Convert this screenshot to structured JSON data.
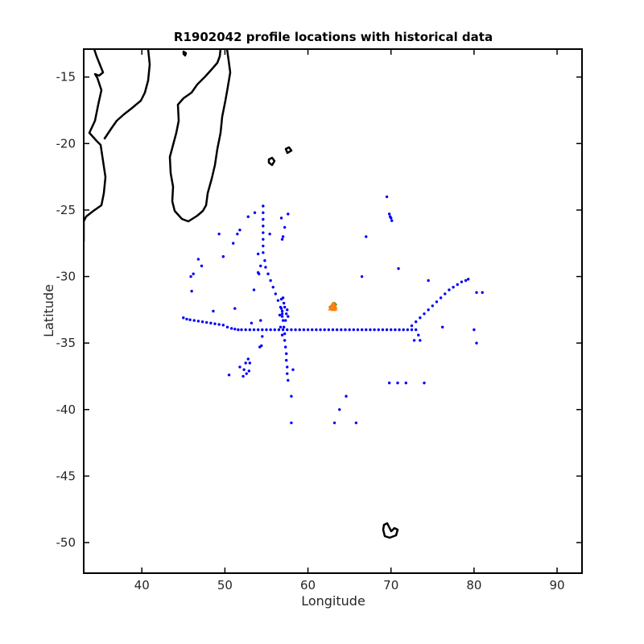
{
  "chart_data": {
    "type": "scatter",
    "title": "R1902042 profile locations with historical data",
    "xlabel": "Longitude",
    "ylabel": "Latitude",
    "xlim": [
      33,
      93
    ],
    "ylim": [
      -52.3,
      -12.9
    ],
    "xticks": [
      40,
      50,
      60,
      70,
      80,
      90
    ],
    "yticks": [
      -15,
      -20,
      -25,
      -30,
      -35,
      -40,
      -45,
      -50
    ],
    "grid": false,
    "colors": {
      "historical": "#0000ff",
      "float_profiles": "#ff7f0e",
      "float_recent": "#2ca02c",
      "coastline": "#000000"
    },
    "series": [
      {
        "marker": "dot",
        "color": "#0000ff",
        "points": [
          [
            45.0,
            -33.1
          ],
          [
            45.4,
            -33.2
          ],
          [
            45.8,
            -33.25
          ],
          [
            46.3,
            -33.3
          ],
          [
            46.8,
            -33.35
          ],
          [
            47.3,
            -33.4
          ],
          [
            47.8,
            -33.45
          ],
          [
            48.3,
            -33.5
          ],
          [
            48.8,
            -33.55
          ],
          [
            49.3,
            -33.6
          ],
          [
            49.8,
            -33.65
          ],
          [
            50.3,
            -33.8
          ],
          [
            50.8,
            -33.9
          ],
          [
            51.2,
            -33.95
          ],
          [
            51.6,
            -34.0
          ],
          [
            52.0,
            -34.0
          ],
          [
            52.5,
            -34.0
          ],
          [
            53.0,
            -34.0
          ],
          [
            53.5,
            -34.0
          ],
          [
            54.0,
            -34.0
          ],
          [
            54.5,
            -34.0
          ],
          [
            55.0,
            -34.0
          ],
          [
            55.5,
            -34.0
          ],
          [
            56.0,
            -34.0
          ],
          [
            56.5,
            -34.0
          ],
          [
            57.0,
            -34.0
          ],
          [
            57.5,
            -34.0
          ],
          [
            58.0,
            -34.0
          ],
          [
            58.5,
            -34.0
          ],
          [
            59.0,
            -34.0
          ],
          [
            59.5,
            -34.0
          ],
          [
            60.0,
            -34.0
          ],
          [
            60.5,
            -34.0
          ],
          [
            61.0,
            -34.0
          ],
          [
            61.5,
            -34.0
          ],
          [
            62.0,
            -34.0
          ],
          [
            62.5,
            -34.0
          ],
          [
            63.0,
            -34.0
          ],
          [
            63.5,
            -34.0
          ],
          [
            64.0,
            -34.0
          ],
          [
            64.5,
            -34.0
          ],
          [
            65.0,
            -34.0
          ],
          [
            65.5,
            -34.0
          ],
          [
            66.0,
            -34.0
          ],
          [
            66.5,
            -34.0
          ],
          [
            67.0,
            -34.0
          ],
          [
            67.5,
            -34.0
          ],
          [
            68.0,
            -34.0
          ],
          [
            68.5,
            -34.0
          ],
          [
            69.0,
            -34.0
          ],
          [
            69.5,
            -34.0
          ],
          [
            70.0,
            -34.0
          ],
          [
            70.5,
            -34.0
          ],
          [
            71.0,
            -34.0
          ],
          [
            71.5,
            -34.0
          ],
          [
            72.0,
            -34.0
          ],
          [
            72.5,
            -34.0
          ],
          [
            73.0,
            -34.0
          ],
          [
            72.5,
            -33.7
          ],
          [
            73.0,
            -33.4
          ],
          [
            73.5,
            -33.1
          ],
          [
            74.0,
            -32.8
          ],
          [
            74.5,
            -32.5
          ],
          [
            75.0,
            -32.2
          ],
          [
            75.5,
            -31.9
          ],
          [
            76.0,
            -31.6
          ],
          [
            76.5,
            -31.3
          ],
          [
            77.0,
            -31.0
          ],
          [
            77.5,
            -30.8
          ],
          [
            78.0,
            -30.6
          ],
          [
            78.5,
            -30.4
          ],
          [
            79.0,
            -30.3
          ],
          [
            79.3,
            -30.2
          ],
          [
            73.3,
            -34.4
          ],
          [
            73.5,
            -34.8
          ],
          [
            72.8,
            -34.8
          ],
          [
            74.5,
            -30.3
          ],
          [
            76.2,
            -33.8
          ],
          [
            80.0,
            -34.0
          ],
          [
            80.3,
            -35.0
          ],
          [
            80.3,
            -31.2
          ],
          [
            81.0,
            -31.2
          ],
          [
            54.6,
            -24.7
          ],
          [
            54.6,
            -25.2
          ],
          [
            54.6,
            -25.7
          ],
          [
            54.6,
            -26.2
          ],
          [
            54.6,
            -26.7
          ],
          [
            54.6,
            -27.2
          ],
          [
            54.6,
            -27.7
          ],
          [
            54.6,
            -28.2
          ],
          [
            54.8,
            -28.8
          ],
          [
            54.9,
            -29.3
          ],
          [
            55.2,
            -29.8
          ],
          [
            55.5,
            -30.3
          ],
          [
            55.8,
            -30.8
          ],
          [
            56.1,
            -31.3
          ],
          [
            56.4,
            -31.8
          ],
          [
            56.7,
            -32.3
          ],
          [
            56.9,
            -32.8
          ],
          [
            57.0,
            -33.3
          ],
          [
            57.1,
            -33.8
          ],
          [
            57.2,
            -34.3
          ],
          [
            57.2,
            -34.8
          ],
          [
            57.3,
            -35.3
          ],
          [
            57.4,
            -35.8
          ],
          [
            57.4,
            -36.3
          ],
          [
            57.5,
            -36.8
          ],
          [
            57.5,
            -37.3
          ],
          [
            57.6,
            -37.8
          ],
          [
            56.8,
            -32.4
          ],
          [
            56.9,
            -32.6
          ],
          [
            57.2,
            -32.3
          ],
          [
            57.4,
            -32.8
          ],
          [
            56.6,
            -32.9
          ],
          [
            57.3,
            -33.3
          ],
          [
            57.5,
            -32.5
          ],
          [
            56.9,
            -33.0
          ],
          [
            57.1,
            -32.0
          ],
          [
            56.8,
            -31.7
          ],
          [
            57.0,
            -31.6
          ],
          [
            57.6,
            -33.0
          ],
          [
            56.9,
            -34.4
          ],
          [
            56.7,
            -33.8
          ],
          [
            54.1,
            -29.8
          ],
          [
            54.0,
            -29.7
          ],
          [
            53.5,
            -31.0
          ],
          [
            54.3,
            -33.3
          ],
          [
            54.5,
            -34.5
          ],
          [
            54.4,
            -35.2
          ],
          [
            54.2,
            -35.3
          ],
          [
            53.2,
            -33.5
          ],
          [
            54.3,
            -29.2
          ],
          [
            54.0,
            -28.3
          ],
          [
            55.4,
            -26.8
          ],
          [
            53.6,
            -25.2
          ],
          [
            52.8,
            -25.5
          ],
          [
            51.8,
            -26.5
          ],
          [
            51.5,
            -26.8
          ],
          [
            51.0,
            -27.5
          ],
          [
            49.3,
            -26.8
          ],
          [
            46.8,
            -28.7
          ],
          [
            47.2,
            -29.2
          ],
          [
            46.2,
            -29.8
          ],
          [
            45.9,
            -30.0
          ],
          [
            46.0,
            -31.1
          ],
          [
            49.8,
            -28.5
          ],
          [
            48.6,
            -32.6
          ],
          [
            51.2,
            -32.4
          ],
          [
            52.8,
            -36.2
          ],
          [
            52.5,
            -36.5
          ],
          [
            52.3,
            -37.0
          ],
          [
            52.6,
            -37.3
          ],
          [
            52.2,
            -37.5
          ],
          [
            51.8,
            -36.8
          ],
          [
            50.5,
            -37.4
          ],
          [
            52.9,
            -37.1
          ],
          [
            53.0,
            -36.5
          ],
          [
            56.8,
            -25.6
          ],
          [
            57.2,
            -26.3
          ],
          [
            57.6,
            -25.3
          ],
          [
            56.9,
            -27.2
          ],
          [
            57.0,
            -27.0
          ],
          [
            69.5,
            -24.0
          ],
          [
            69.8,
            -25.3
          ],
          [
            69.9,
            -25.5
          ],
          [
            70.0,
            -25.6
          ],
          [
            70.1,
            -25.8
          ],
          [
            67.0,
            -27.0
          ],
          [
            66.5,
            -30.0
          ],
          [
            70.9,
            -29.4
          ],
          [
            58.0,
            -39.0
          ],
          [
            58.0,
            -41.0
          ],
          [
            63.2,
            -41.0
          ],
          [
            63.8,
            -40.0
          ],
          [
            64.6,
            -39.0
          ],
          [
            65.8,
            -41.0
          ],
          [
            69.8,
            -38.0
          ],
          [
            70.8,
            -38.0
          ],
          [
            71.8,
            -38.0
          ],
          [
            74.0,
            -38.0
          ],
          [
            58.2,
            -37.0
          ]
        ]
      },
      {
        "marker": "triangle",
        "color": "#ff7f0e",
        "points": [
          [
            62.9,
            -32.2
          ],
          [
            63.1,
            -32.4
          ],
          [
            63.0,
            -32.1
          ],
          [
            63.2,
            -32.3
          ],
          [
            62.8,
            -32.35
          ],
          [
            63.05,
            -32.25
          ],
          [
            63.15,
            -32.15
          ]
        ]
      },
      {
        "marker": "diamond",
        "color": "#2ca02c",
        "points": [
          [
            62.8,
            -32.3
          ],
          [
            63.2,
            -32.1
          ]
        ]
      }
    ]
  }
}
